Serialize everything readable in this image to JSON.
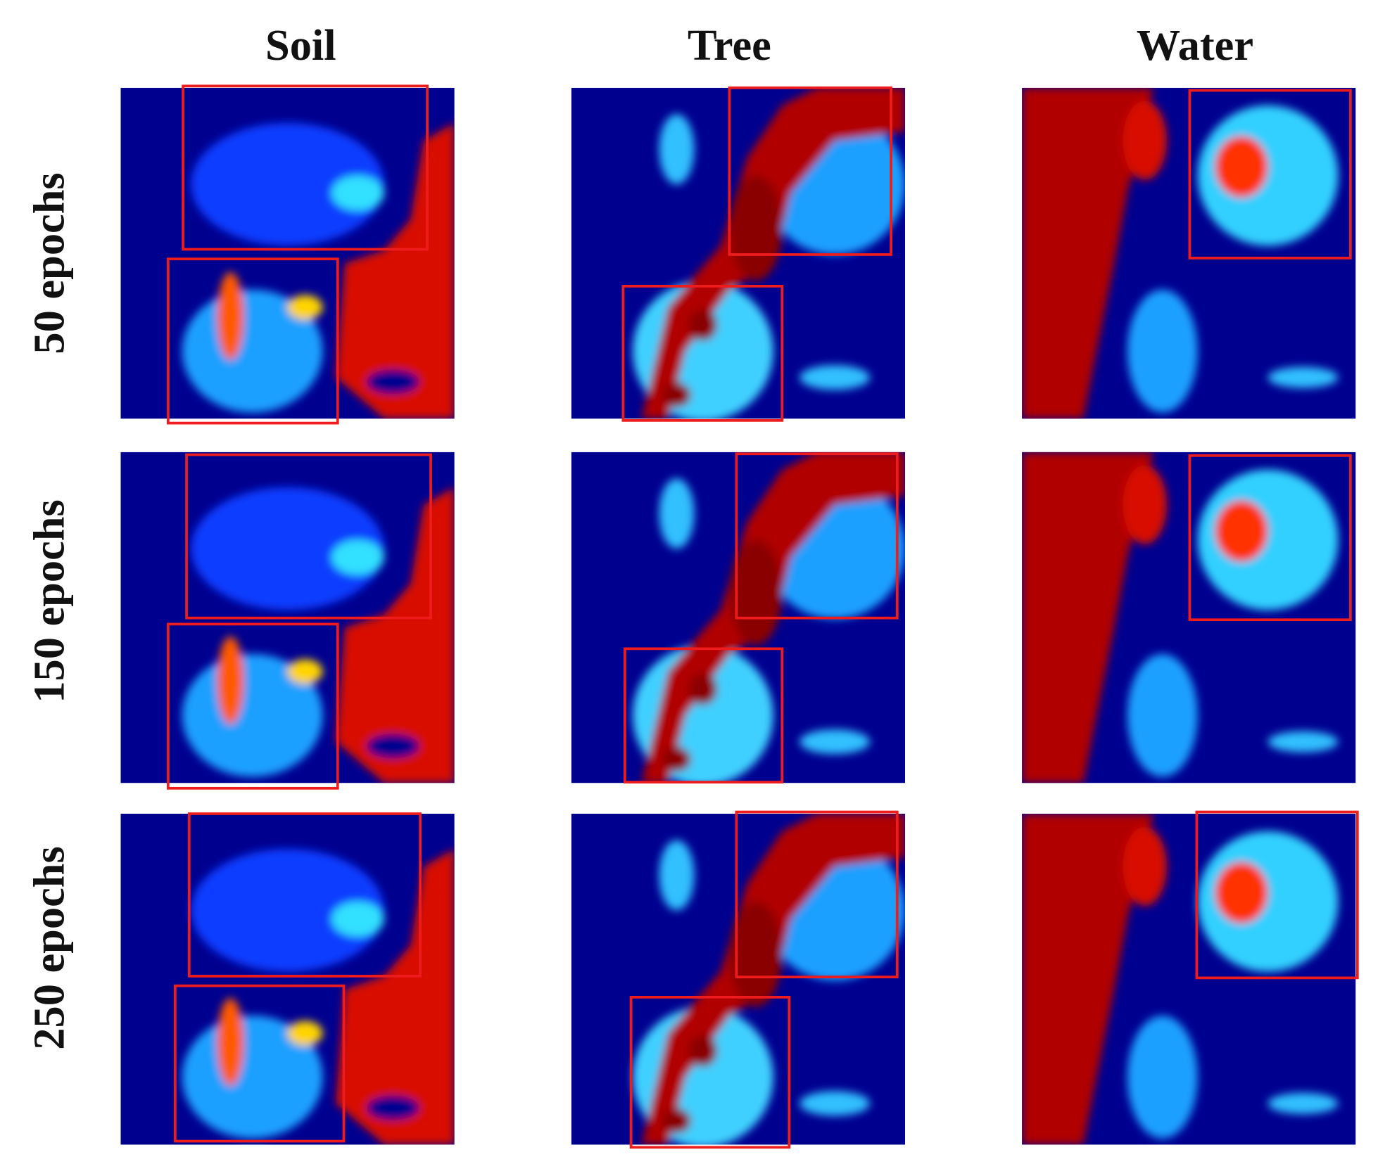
{
  "columns": [
    "Soil",
    "Tree",
    "Water"
  ],
  "rows": [
    "50 epochs",
    "150 epochs",
    "250 epochs"
  ]
}
